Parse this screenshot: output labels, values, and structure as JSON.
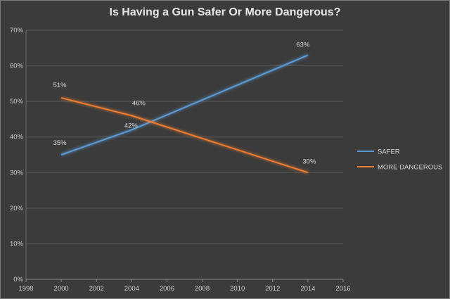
{
  "chart_data": {
    "type": "line",
    "title": "Is Having a Gun Safer Or More Dangerous?",
    "xlabel": "",
    "ylabel": "",
    "xlim": [
      1998,
      2016
    ],
    "ylim": [
      0,
      70
    ],
    "x_ticks": [
      1998,
      2000,
      2002,
      2004,
      2006,
      2008,
      2010,
      2012,
      2014,
      2016
    ],
    "y_ticks": [
      "0%",
      "10%",
      "20%",
      "30%",
      "40%",
      "50%",
      "60%",
      "70%"
    ],
    "grid": "horizontal",
    "legend_position": "right",
    "series": [
      {
        "name": "SAFER",
        "color": "#5b9bd5",
        "x": [
          2000,
          2004,
          2014
        ],
        "values": [
          35,
          42,
          63
        ],
        "labels": [
          "35%",
          "42%",
          "63%"
        ]
      },
      {
        "name": "MORE DANGEROUS",
        "color": "#ed7d31",
        "x": [
          2000,
          2004,
          2014
        ],
        "values": [
          51,
          46,
          30
        ],
        "labels": [
          "51%",
          "46%",
          "30%"
        ]
      }
    ]
  }
}
